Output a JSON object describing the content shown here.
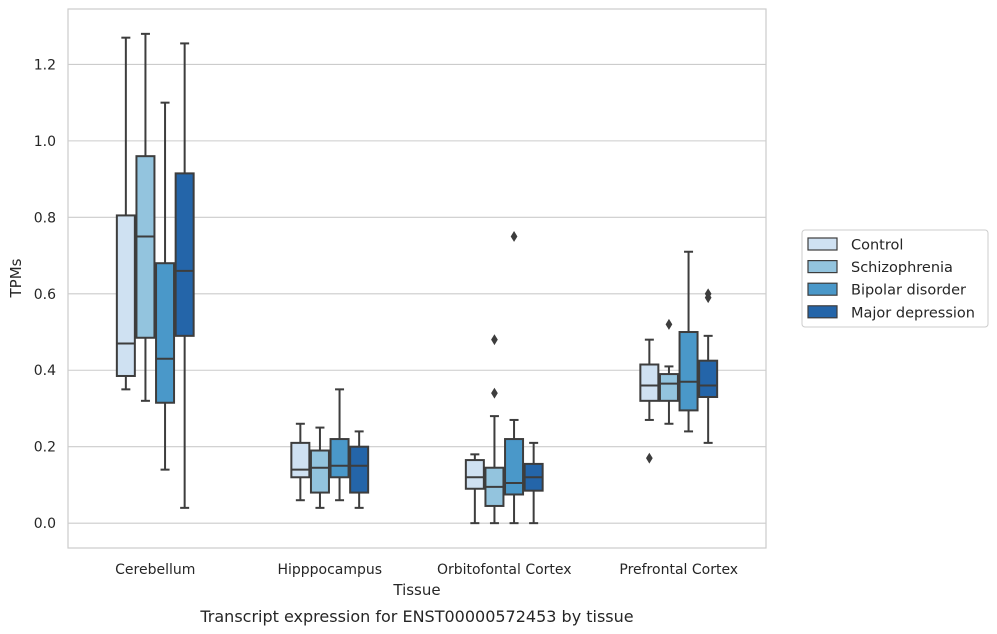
{
  "chart_data": {
    "type": "box",
    "xlabel": "Tissue",
    "ylabel": "TPMs",
    "caption": "Transcript expression for ENST00000572453 by tissue",
    "ylim": [
      -0.065,
      1.345
    ],
    "yticks": [
      0.0,
      0.2,
      0.4,
      0.6,
      0.8,
      1.0,
      1.2
    ],
    "ytick_labels": [
      "0.0",
      "0.2",
      "0.4",
      "0.6",
      "0.8",
      "1.0",
      "1.2"
    ],
    "grid": "horizontal",
    "legend_position": "right",
    "categories": [
      "Cerebellum",
      "Hipppocampus",
      "Orbitofontal Cortex",
      "Prefrontal Cortex"
    ],
    "series": [
      {
        "name": "Control",
        "color": "#cfe1f2",
        "boxes": [
          {
            "whislo": 0.35,
            "q1": 0.385,
            "med": 0.47,
            "q3": 0.805,
            "whishi": 1.27,
            "fliers": []
          },
          {
            "whislo": 0.06,
            "q1": 0.12,
            "med": 0.14,
            "q3": 0.21,
            "whishi": 0.26,
            "fliers": []
          },
          {
            "whislo": 0.0,
            "q1": 0.09,
            "med": 0.12,
            "q3": 0.165,
            "whishi": 0.18,
            "fliers": []
          },
          {
            "whislo": 0.27,
            "q1": 0.32,
            "med": 0.36,
            "q3": 0.415,
            "whishi": 0.48,
            "fliers": [
              0.17
            ]
          }
        ]
      },
      {
        "name": "Schizophrenia",
        "color": "#93c4de",
        "boxes": [
          {
            "whislo": 0.32,
            "q1": 0.485,
            "med": 0.75,
            "q3": 0.96,
            "whishi": 1.28,
            "fliers": []
          },
          {
            "whislo": 0.04,
            "q1": 0.08,
            "med": 0.145,
            "q3": 0.19,
            "whishi": 0.25,
            "fliers": []
          },
          {
            "whislo": 0.0,
            "q1": 0.045,
            "med": 0.095,
            "q3": 0.145,
            "whishi": 0.28,
            "fliers": [
              0.34,
              0.48
            ]
          },
          {
            "whislo": 0.26,
            "q1": 0.32,
            "med": 0.365,
            "q3": 0.39,
            "whishi": 0.41,
            "fliers": [
              0.52
            ]
          }
        ]
      },
      {
        "name": "Bipolar disorder",
        "color": "#4a98c9",
        "boxes": [
          {
            "whislo": 0.14,
            "q1": 0.315,
            "med": 0.43,
            "q3": 0.68,
            "whishi": 1.1,
            "fliers": []
          },
          {
            "whislo": 0.06,
            "q1": 0.12,
            "med": 0.15,
            "q3": 0.22,
            "whishi": 0.35,
            "fliers": []
          },
          {
            "whislo": 0.0,
            "q1": 0.075,
            "med": 0.105,
            "q3": 0.22,
            "whishi": 0.27,
            "fliers": [
              0.75
            ]
          },
          {
            "whislo": 0.24,
            "q1": 0.295,
            "med": 0.37,
            "q3": 0.5,
            "whishi": 0.71,
            "fliers": []
          }
        ]
      },
      {
        "name": "Major depression",
        "color": "#2465a9",
        "boxes": [
          {
            "whislo": 0.04,
            "q1": 0.49,
            "med": 0.66,
            "q3": 0.915,
            "whishi": 1.255,
            "fliers": []
          },
          {
            "whislo": 0.04,
            "q1": 0.08,
            "med": 0.15,
            "q3": 0.2,
            "whishi": 0.24,
            "fliers": []
          },
          {
            "whislo": 0.0,
            "q1": 0.085,
            "med": 0.12,
            "q3": 0.155,
            "whishi": 0.21,
            "fliers": []
          },
          {
            "whislo": 0.21,
            "q1": 0.33,
            "med": 0.36,
            "q3": 0.425,
            "whishi": 0.49,
            "fliers": [
              0.59,
              0.6
            ]
          }
        ]
      }
    ]
  }
}
